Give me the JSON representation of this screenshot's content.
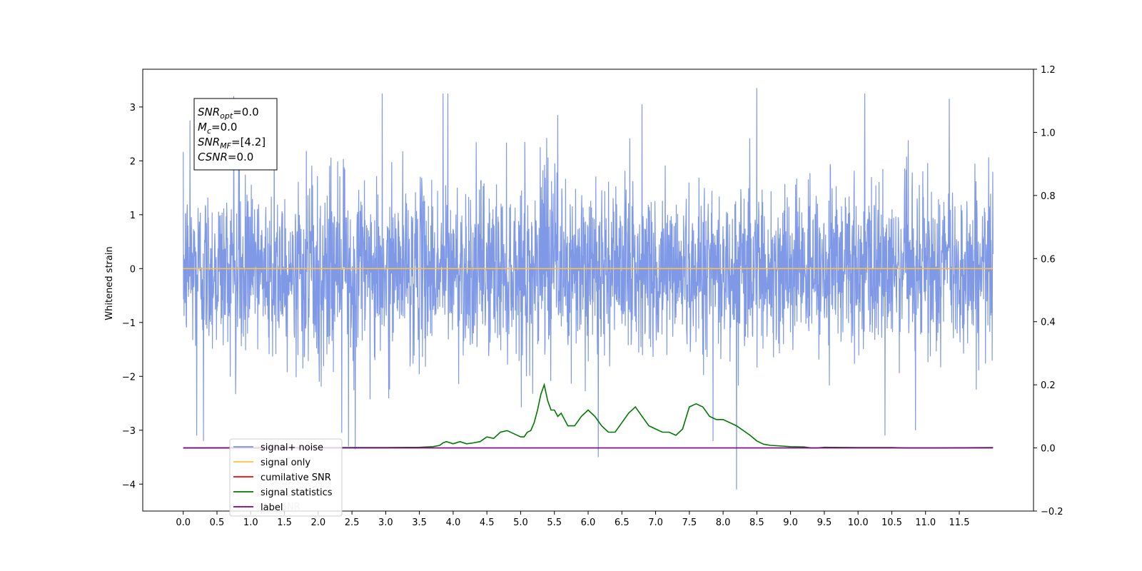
{
  "chart_data": {
    "type": "line",
    "title": "",
    "xlabel": "",
    "ylabel": "Whitened strain",
    "xlim": [
      -0.6,
      12.6
    ],
    "ylim_left": [
      -4.5,
      3.7
    ],
    "ylim_right": [
      -0.2,
      1.2
    ],
    "x_ticks": [
      "0.0",
      "0.5",
      "1.0",
      "1.5",
      "2.0",
      "2.5",
      "3.0",
      "3.5",
      "4.0",
      "4.5",
      "5.0",
      "5.5",
      "6.0",
      "6.5",
      "7.0",
      "7.5",
      "8.0",
      "8.5",
      "9.0",
      "9.5",
      "10.0",
      "10.5",
      "11.0",
      "11.5"
    ],
    "y_ticks_left": [
      "3",
      "2",
      "1",
      "0",
      "−1",
      "−2",
      "−3",
      "−4"
    ],
    "y_ticks_right": [
      "1.2",
      "1.0",
      "0.8",
      "0.6",
      "0.4",
      "0.2",
      "0.0",
      "−0.2"
    ],
    "grid": false,
    "legend_position": "lower-left",
    "annotation": {
      "lines": [
        {
          "sym": "SNR",
          "sub": "opt",
          "val": "=0.0"
        },
        {
          "sym": "M",
          "sub": "c",
          "val": "=0.0"
        },
        {
          "sym": "SNR",
          "sub": "MF",
          "val": "=[4.2]"
        },
        {
          "sym": "CSNR",
          "sub": "",
          "val": "=0.0"
        }
      ]
    },
    "series": [
      {
        "name": "signal+ noise",
        "color": "#7894e6",
        "axis": "left",
        "x_range": [
          0.0,
          12.0
        ],
        "noise_std": 0.78,
        "mean": 0.0,
        "spikes": [
          [
            0.1,
            2.75
          ],
          [
            0.75,
            3.2
          ],
          [
            1.35,
            2.95
          ],
          [
            2.95,
            3.25
          ],
          [
            3.85,
            3.25
          ],
          [
            3.92,
            3.25
          ],
          [
            5.55,
            2.85
          ],
          [
            6.8,
            3.05
          ],
          [
            8.5,
            3.35
          ],
          [
            10.1,
            3.25
          ],
          [
            11.35,
            3.15
          ],
          [
            0.2,
            -3.1
          ],
          [
            0.3,
            -3.2
          ],
          [
            2.35,
            -3.05
          ],
          [
            2.45,
            -3.3
          ],
          [
            2.55,
            -3.35
          ],
          [
            6.15,
            -3.5
          ],
          [
            7.85,
            -3.2
          ],
          [
            8.2,
            -4.1
          ],
          [
            10.4,
            -3.1
          ],
          [
            10.85,
            -3.0
          ]
        ]
      },
      {
        "name": "signal only",
        "color": "#ffbf40",
        "axis": "left",
        "x": [
          0.0,
          12.0
        ],
        "values": [
          0.0,
          0.0
        ]
      },
      {
        "name": "cumilative SNR",
        "color": "#ff0000",
        "axis": "right",
        "x": [],
        "values": []
      },
      {
        "name": "signal statistics",
        "color": "#007800",
        "axis": "right",
        "x": [
          0.0,
          2.5,
          3.0,
          3.5,
          3.7,
          3.8,
          3.85,
          3.9,
          4.0,
          4.1,
          4.2,
          4.3,
          4.4,
          4.5,
          4.6,
          4.7,
          4.8,
          4.9,
          5.0,
          5.05,
          5.1,
          5.15,
          5.2,
          5.25,
          5.3,
          5.35,
          5.4,
          5.45,
          5.5,
          5.55,
          5.6,
          5.7,
          5.8,
          5.9,
          6.0,
          6.1,
          6.2,
          6.3,
          6.4,
          6.5,
          6.6,
          6.7,
          6.8,
          6.9,
          7.0,
          7.1,
          7.2,
          7.3,
          7.4,
          7.5,
          7.6,
          7.7,
          7.8,
          7.9,
          8.0,
          8.2,
          8.4,
          8.5,
          8.6,
          8.7,
          8.8,
          9.0,
          9.2,
          9.3,
          9.4,
          9.5,
          10.0,
          10.5,
          10.7,
          10.8,
          11.0,
          11.2,
          12.0
        ],
        "values": [
          0.0,
          0.001,
          0.001,
          0.002,
          0.004,
          0.008,
          0.016,
          0.02,
          0.013,
          0.02,
          0.013,
          0.016,
          0.02,
          0.035,
          0.03,
          0.05,
          0.055,
          0.045,
          0.035,
          0.035,
          0.05,
          0.055,
          0.08,
          0.12,
          0.17,
          0.2,
          0.15,
          0.12,
          0.12,
          0.1,
          0.11,
          0.07,
          0.07,
          0.1,
          0.12,
          0.1,
          0.07,
          0.05,
          0.05,
          0.08,
          0.11,
          0.13,
          0.1,
          0.07,
          0.06,
          0.05,
          0.05,
          0.04,
          0.06,
          0.13,
          0.14,
          0.13,
          0.1,
          0.09,
          0.09,
          0.07,
          0.04,
          0.022,
          0.012,
          0.008,
          0.007,
          0.004,
          0.003,
          0.0,
          0.0,
          0.002,
          0.001,
          0.001,
          0.0,
          0.0,
          0.0,
          0.0,
          0.001
        ]
      },
      {
        "name": "label",
        "color": "#800080",
        "axis": "right",
        "x": [
          0.0,
          12.0
        ],
        "values": [
          0.0,
          0.0
        ]
      }
    ],
    "hidden_legend_text": "cumilative SNR"
  }
}
